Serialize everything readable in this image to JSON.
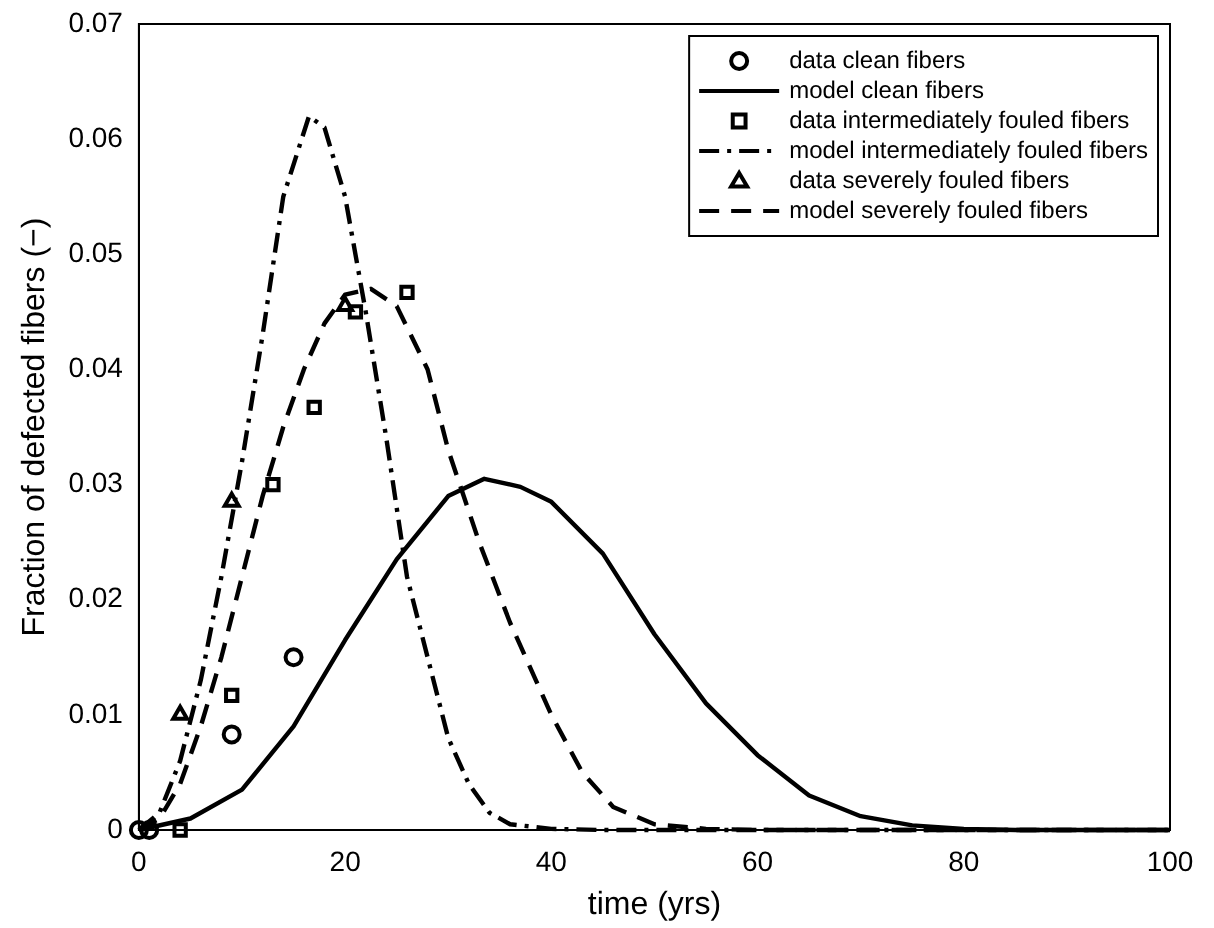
{
  "chart_data": {
    "type": "line",
    "xlabel": "time (yrs)",
    "ylabel": "Fraction of defected fibers (−)",
    "xlim": [
      0,
      100
    ],
    "xticks": [
      0,
      20,
      40,
      60,
      80,
      100
    ],
    "ylim": [
      0,
      0.07
    ],
    "yticks": [
      0,
      0.01,
      0.02,
      0.03,
      0.04,
      0.05,
      0.06,
      0.07
    ],
    "grid": false,
    "legend": "top right",
    "series": [
      {
        "name": "data clean fibers",
        "type": "scatter",
        "marker": "circle",
        "color": "#000000",
        "x": [
          0,
          1,
          9,
          15
        ],
        "values": [
          0,
          0,
          0.0083,
          0.015
        ]
      },
      {
        "name": "model clean fibers",
        "line_style": "solid",
        "marker": "none",
        "color": "#000000",
        "x": [
          0,
          5,
          10,
          15,
          20,
          25,
          30,
          33.5,
          37,
          40,
          45,
          50,
          55,
          60,
          65,
          70,
          75,
          80,
          85,
          100
        ],
        "values": [
          0,
          0.001,
          0.0035,
          0.009,
          0.0165,
          0.0235,
          0.029,
          0.0305,
          0.0298,
          0.0285,
          0.024,
          0.017,
          0.011,
          0.0065,
          0.003,
          0.0012,
          0.0004,
          0.0001,
          0,
          0
        ]
      },
      {
        "name": "data intermediately fouled fibers",
        "type": "scatter",
        "marker": "square",
        "color": "#000000",
        "x": [
          4,
          9,
          13,
          17,
          21,
          26
        ],
        "values": [
          0,
          0.0117,
          0.03,
          0.0367,
          0.045,
          0.0467
        ]
      },
      {
        "name": "model intermediately fouled fibers",
        "line_style": "dashdot",
        "marker": "none",
        "color": "#000000",
        "x": [
          0,
          2,
          4,
          6,
          8,
          10,
          12,
          14,
          16.5,
          18,
          20,
          22,
          24,
          26,
          28,
          30,
          32,
          34,
          36,
          40,
          45,
          100
        ],
        "values": [
          0,
          0.0015,
          0.006,
          0.013,
          0.022,
          0.032,
          0.043,
          0.055,
          0.062,
          0.061,
          0.055,
          0.045,
          0.034,
          0.022,
          0.015,
          0.008,
          0.004,
          0.0015,
          0.0005,
          0.0001,
          0,
          0
        ]
      },
      {
        "name": "data severely fouled fibers",
        "type": "scatter",
        "marker": "triangle",
        "color": "#000000",
        "x": [
          4,
          9,
          20
        ],
        "values": [
          0.01,
          0.0285,
          0.0455
        ]
      },
      {
        "name": "model severely fouled fibers",
        "line_style": "dashed",
        "marker": "none",
        "color": "#000000",
        "x": [
          0,
          2,
          4,
          6,
          8,
          10,
          12,
          14,
          16,
          18,
          20,
          22.5,
          25,
          28,
          30,
          33,
          36,
          40,
          43,
          46,
          50,
          55,
          60,
          100
        ],
        "values": [
          0,
          0.001,
          0.004,
          0.009,
          0.015,
          0.022,
          0.029,
          0.035,
          0.04,
          0.044,
          0.0465,
          0.047,
          0.0455,
          0.04,
          0.033,
          0.025,
          0.018,
          0.01,
          0.005,
          0.002,
          0.0005,
          0.0001,
          0,
          0
        ]
      }
    ]
  }
}
